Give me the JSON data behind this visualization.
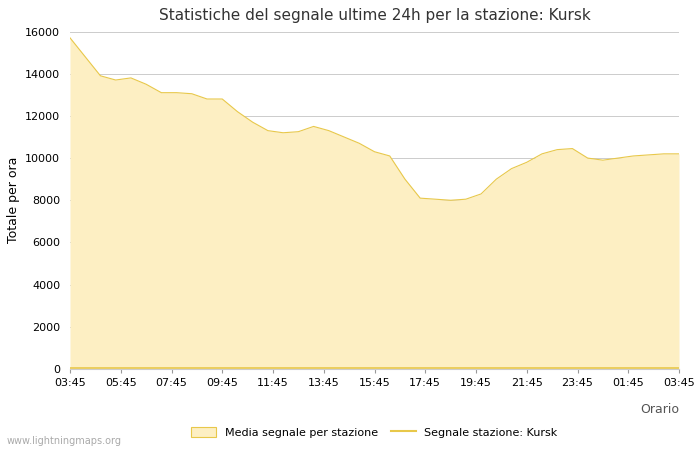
{
  "title": "Statistiche del segnale ultime 24h per la stazione: Kursk",
  "xlabel": "Orario",
  "ylabel": "Totale per ora",
  "watermark": "www.lightningmaps.org",
  "x_labels": [
    "03:45",
    "05:45",
    "07:45",
    "09:45",
    "11:45",
    "13:45",
    "15:45",
    "17:45",
    "19:45",
    "21:45",
    "23:45",
    "01:45",
    "03:45"
  ],
  "area_color": "#fdefc3",
  "area_edge_color": "#e8c84a",
  "line_color": "#e8c84a",
  "background_color": "#ffffff",
  "grid_color": "#cccccc",
  "ylim": [
    0,
    16000
  ],
  "yticks": [
    0,
    2000,
    4000,
    6000,
    8000,
    10000,
    12000,
    14000,
    16000
  ],
  "legend_area_label": "Media segnale per stazione",
  "legend_line_label": "Segnale stazione: Kursk",
  "area_values": [
    15700,
    14800,
    13900,
    13700,
    13800,
    13500,
    13100,
    13100,
    13050,
    12800,
    12800,
    12200,
    11700,
    11300,
    11200,
    11250,
    11500,
    11300,
    11000,
    10700,
    10300,
    10100,
    9000,
    8100,
    8050,
    8000,
    8050,
    8300,
    9000,
    9500,
    9800,
    10200,
    10400,
    10450,
    10000,
    9900,
    10000,
    10100,
    10150,
    10200,
    10200
  ],
  "line_values": [
    50,
    50,
    50,
    50,
    50,
    50,
    50,
    50,
    50,
    50,
    50,
    50,
    50,
    50,
    50,
    50,
    50,
    50,
    50,
    50,
    50,
    50,
    50,
    50,
    50,
    50,
    50,
    50,
    50,
    50,
    50,
    50,
    50,
    50,
    50,
    50,
    50,
    50,
    50,
    50,
    50
  ],
  "n_points": 41
}
